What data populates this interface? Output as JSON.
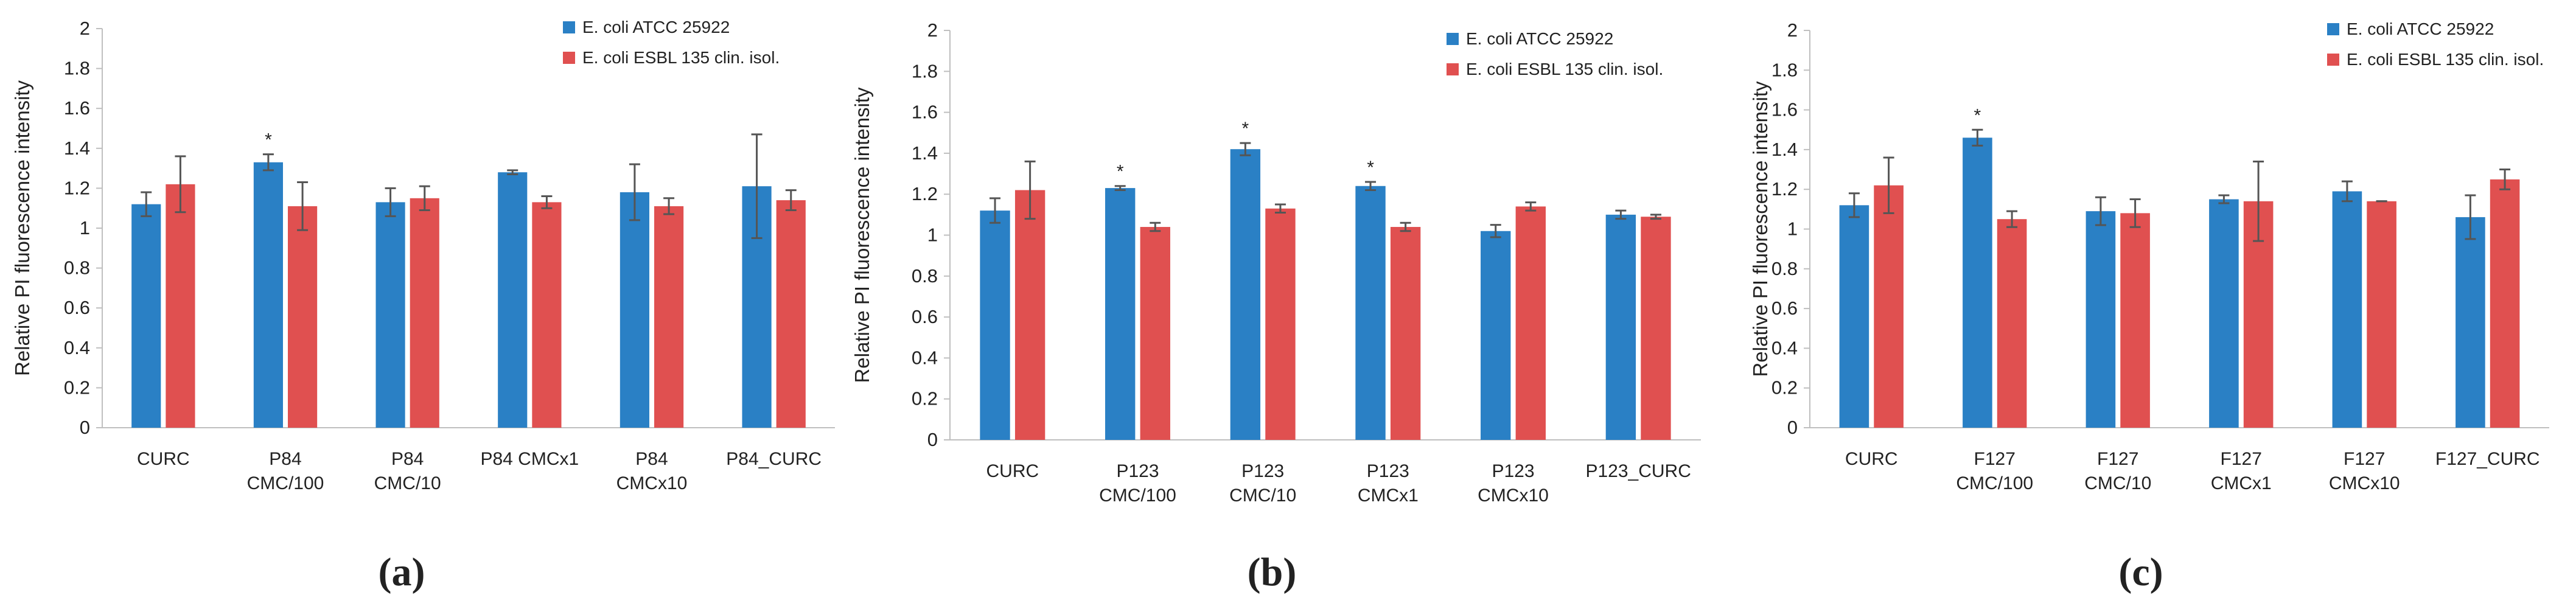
{
  "figure": {
    "series_names": [
      "E. coli ATCC 25922",
      "E. coli ESBL 135 clin. isol."
    ],
    "series_colors": [
      "#2a80c5",
      "#e05050"
    ],
    "error_bar_color": "#555555"
  },
  "chart_data": [
    {
      "type": "bar",
      "panel_label": "(a)",
      "ylabel": "Relative PI fluorescence intensity",
      "xlabel": "",
      "ylim": [
        0,
        2
      ],
      "yticks": [
        "0",
        "0.2",
        "0.4",
        "0.6",
        "0.8",
        "1",
        "1.2",
        "1.4",
        "1.6",
        "1.8",
        "2"
      ],
      "grid": false,
      "legend": "top-right",
      "categories": [
        [
          "CURC"
        ],
        [
          "P84",
          "CMC/100"
        ],
        [
          "P84",
          "CMC/10"
        ],
        [
          "P84 CMCx1"
        ],
        [
          "P84",
          "CMCx10"
        ],
        [
          "P84_CURC"
        ]
      ],
      "series": [
        {
          "name": "E. coli ATCC 25922",
          "values": [
            1.12,
            1.33,
            1.13,
            1.28,
            1.18,
            1.21
          ],
          "errors": [
            0.06,
            0.04,
            0.07,
            0.01,
            0.14,
            0.26
          ]
        },
        {
          "name": "E. coli ESBL 135 clin. isol.",
          "values": [
            1.22,
            1.11,
            1.15,
            1.13,
            1.11,
            1.14
          ],
          "errors": [
            0.14,
            0.12,
            0.06,
            0.03,
            0.04,
            0.05
          ]
        }
      ],
      "annotations": [
        {
          "category_index": 1,
          "series_index": 0,
          "text": "*"
        }
      ]
    },
    {
      "type": "bar",
      "panel_label": "(b)",
      "ylabel": "Relative PI fluorescence intensity",
      "xlabel": "",
      "ylim": [
        0,
        2
      ],
      "yticks": [
        "0",
        "0.2",
        "0.4",
        "0.6",
        "0.8",
        "1",
        "1.2",
        "1.4",
        "1.6",
        "1.8",
        "2"
      ],
      "grid": false,
      "legend": "top-right",
      "categories": [
        [
          "CURC"
        ],
        [
          "P123",
          "CMC/100"
        ],
        [
          "P123",
          "CMC/10"
        ],
        [
          "P123",
          "CMCx1"
        ],
        [
          "P123",
          "CMCx10"
        ],
        [
          "P123_CURC"
        ]
      ],
      "series": [
        {
          "name": "E. coli ATCC 25922",
          "values": [
            1.12,
            1.23,
            1.42,
            1.24,
            1.02,
            1.1
          ],
          "errors": [
            0.06,
            0.01,
            0.03,
            0.02,
            0.03,
            0.02
          ]
        },
        {
          "name": "E. coli ESBL 135 clin. isol.",
          "values": [
            1.22,
            1.04,
            1.13,
            1.04,
            1.14,
            1.09
          ],
          "errors": [
            0.14,
            0.02,
            0.02,
            0.02,
            0.02,
            0.01
          ]
        }
      ],
      "annotations": [
        {
          "category_index": 1,
          "series_index": 0,
          "text": "*"
        },
        {
          "category_index": 2,
          "series_index": 0,
          "text": "*"
        },
        {
          "category_index": 3,
          "series_index": 0,
          "text": "*"
        }
      ]
    },
    {
      "type": "bar",
      "panel_label": "(c)",
      "ylabel": "Relative PI fluorescence intensity",
      "xlabel": "",
      "ylim": [
        0,
        2
      ],
      "yticks": [
        "0",
        "0.2",
        "0.4",
        "0.6",
        "0.8",
        "1",
        "1.2",
        "1.4",
        "1.6",
        "1.8",
        "2"
      ],
      "grid": false,
      "legend": "top-right",
      "categories": [
        [
          "CURC"
        ],
        [
          "F127",
          "CMC/100"
        ],
        [
          "F127",
          "CMC/10"
        ],
        [
          "F127",
          "CMCx1"
        ],
        [
          "F127",
          "CMCx10"
        ],
        [
          "F127_CURC"
        ]
      ],
      "series": [
        {
          "name": "E. coli ATCC 25922",
          "values": [
            1.12,
            1.46,
            1.09,
            1.15,
            1.19,
            1.06
          ],
          "errors": [
            0.06,
            0.04,
            0.07,
            0.02,
            0.05,
            0.11
          ]
        },
        {
          "name": "E. coli ESBL 135 clin. isol.",
          "values": [
            1.22,
            1.05,
            1.08,
            1.14,
            1.14,
            1.25
          ],
          "errors": [
            0.14,
            0.04,
            0.07,
            0.2,
            0.0,
            0.05
          ]
        }
      ],
      "annotations": [
        {
          "category_index": 1,
          "series_index": 0,
          "text": "*"
        }
      ]
    }
  ]
}
